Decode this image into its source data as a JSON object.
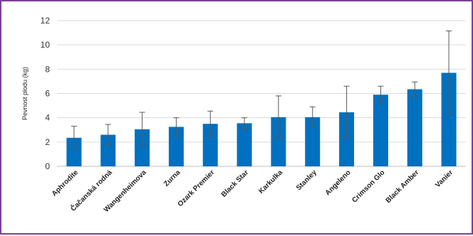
{
  "chart_data": {
    "type": "bar",
    "ylabel": "Pevnost plodu (kg)",
    "ylim": [
      0,
      12
    ],
    "yticks": [
      0,
      2,
      4,
      6,
      8,
      10,
      12
    ],
    "grid": true,
    "bar_color": "#0070c0",
    "frame_color": "#7e3f98",
    "categories": [
      "Aphrodite",
      "Čačanská rodná",
      "Wangenheimova",
      "Zurna",
      "Ozark Premier",
      "Black Star",
      "Karkulka",
      "Stanley",
      "Angeleno",
      "Crimson Glo",
      "Black Amber",
      "Vanier"
    ],
    "series": [
      {
        "values": [
          2.35,
          2.6,
          3.05,
          3.25,
          3.5,
          3.55,
          4.05,
          4.05,
          4.45,
          5.9,
          6.35,
          7.7
        ],
        "error": [
          0.95,
          0.85,
          1.4,
          0.75,
          1.05,
          0.45,
          1.75,
          0.85,
          2.15,
          0.7,
          0.6,
          3.45
        ]
      }
    ]
  }
}
